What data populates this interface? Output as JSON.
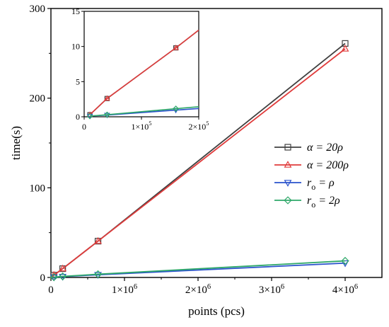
{
  "chart_data": [
    {
      "id": "main",
      "type": "line",
      "xlabel": "points (pcs)",
      "ylabel": "time(s)",
      "xlim": [
        0,
        4500000
      ],
      "ylim": [
        0,
        300
      ],
      "x_ticks": [
        0,
        1000000,
        2000000,
        3000000,
        4000000
      ],
      "x_tick_labels": [
        {
          "base": "0",
          "exp": ""
        },
        {
          "base": "1×10",
          "exp": "6"
        },
        {
          "base": "2×10",
          "exp": "6"
        },
        {
          "base": "3×10",
          "exp": "6"
        },
        {
          "base": "4×10",
          "exp": "6"
        }
      ],
      "y_ticks": [
        0,
        100,
        200,
        300
      ],
      "y_tick_labels": [
        "0",
        "100",
        "200",
        "300"
      ],
      "grid": false,
      "legend_placement": "right-middle",
      "series": [
        {
          "name": "α = 20ρ",
          "legend": {
            "main": "α = 20ρ",
            "sub": ""
          },
          "color": "#404040",
          "marker": "square",
          "x": [
            10000,
            40000,
            160000,
            640000,
            4000000
          ],
          "y": [
            0.3,
            2.6,
            9.8,
            40.5,
            261
          ]
        },
        {
          "name": "α = 200ρ",
          "legend": {
            "main": "α = 200ρ",
            "sub": ""
          },
          "color": "#e03c3c",
          "marker": "triangle-up",
          "x": [
            10000,
            40000,
            160000,
            640000,
            4000000
          ],
          "y": [
            0.3,
            2.6,
            9.8,
            40.5,
            255
          ]
        },
        {
          "name": "r_o = ρ",
          "legend": {
            "main": "r",
            "sub": "o",
            "rest": " = ρ"
          },
          "color": "#2a52cc",
          "marker": "triangle-down",
          "x": [
            10000,
            40000,
            160000,
            640000,
            4000000
          ],
          "y": [
            0.1,
            0.25,
            0.95,
            3.0,
            16
          ]
        },
        {
          "name": "r_o = 2ρ",
          "legend": {
            "main": "r",
            "sub": "o",
            "rest": " = 2ρ"
          },
          "color": "#2ea869",
          "marker": "diamond",
          "x": [
            10000,
            40000,
            160000,
            640000,
            4000000
          ],
          "y": [
            0.1,
            0.3,
            1.15,
            3.6,
            18.5
          ]
        }
      ]
    },
    {
      "id": "inset",
      "type": "line",
      "xlim": [
        0,
        200000
      ],
      "ylim": [
        0,
        15
      ],
      "x_ticks": [
        0,
        100000,
        200000
      ],
      "x_tick_labels": [
        {
          "base": "0",
          "exp": ""
        },
        {
          "base": "1×10",
          "exp": "5"
        },
        {
          "base": "2×10",
          "exp": "5"
        }
      ],
      "y_ticks": [
        0,
        5,
        10,
        15
      ],
      "y_tick_labels": [
        "0",
        "5",
        "10",
        "15"
      ],
      "grid": false,
      "series": [
        {
          "name": "α = 20ρ",
          "color": "#404040",
          "marker": "square",
          "x": [
            10000,
            40000,
            160000
          ],
          "y": [
            0.3,
            2.6,
            9.8
          ]
        },
        {
          "name": "α = 200ρ",
          "color": "#e03c3c",
          "marker": "triangle-up",
          "x": [
            10000,
            40000,
            160000
          ],
          "y": [
            0.3,
            2.6,
            9.8
          ]
        },
        {
          "name": "r_o = ρ",
          "color": "#2a52cc",
          "marker": "triangle-down",
          "x": [
            10000,
            40000,
            160000
          ],
          "y": [
            0.1,
            0.25,
            0.95
          ]
        },
        {
          "name": "r_o = 2ρ",
          "color": "#2ea869",
          "marker": "diamond",
          "x": [
            10000,
            40000,
            160000
          ],
          "y": [
            0.1,
            0.3,
            1.15
          ]
        }
      ]
    }
  ]
}
